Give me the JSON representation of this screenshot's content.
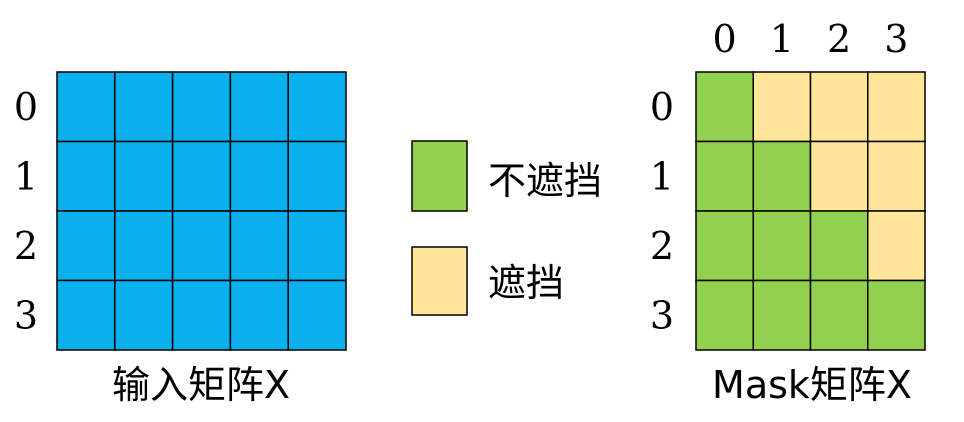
{
  "colors": {
    "input_fill": "#0AB0EE",
    "visible_fill": "#92D050",
    "masked_fill": "#FFE699",
    "grid_line": "#000000"
  },
  "input_matrix": {
    "caption": "输入矩阵X",
    "rows": 4,
    "cols": 5,
    "row_labels": [
      "0",
      "1",
      "2",
      "3"
    ]
  },
  "legend": {
    "items": [
      {
        "label": "不遮挡",
        "state": "visible"
      },
      {
        "label": "遮挡",
        "state": "masked"
      }
    ]
  },
  "mask_matrix": {
    "caption": "Mask矩阵X",
    "row_labels": [
      "0",
      "1",
      "2",
      "3"
    ],
    "col_labels": [
      "0",
      "1",
      "2",
      "3"
    ],
    "cells": [
      [
        "visible",
        "masked",
        "masked",
        "masked"
      ],
      [
        "visible",
        "visible",
        "masked",
        "masked"
      ],
      [
        "visible",
        "visible",
        "visible",
        "masked"
      ],
      [
        "visible",
        "visible",
        "visible",
        "visible"
      ]
    ]
  }
}
